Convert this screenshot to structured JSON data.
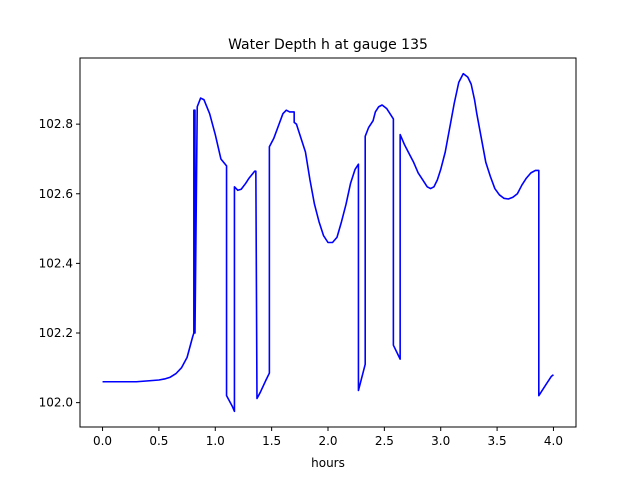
{
  "chart_data": {
    "type": "line",
    "title": "Water Depth h at gauge 135",
    "xlabel": "hours",
    "ylabel": "",
    "xlim": [
      -0.2,
      4.2
    ],
    "ylim": [
      101.93,
      102.99
    ],
    "xticks": [
      0.0,
      0.5,
      1.0,
      1.5,
      2.0,
      2.5,
      3.0,
      3.5,
      4.0
    ],
    "xtick_labels": [
      "0.0",
      "0.5",
      "1.0",
      "1.5",
      "2.0",
      "2.5",
      "3.0",
      "3.5",
      "4.0"
    ],
    "yticks": [
      102.0,
      102.2,
      102.4,
      102.6,
      102.8
    ],
    "ytick_labels": [
      "102.0",
      "102.2",
      "102.4",
      "102.6",
      "102.8"
    ],
    "grid": false,
    "legend": "none",
    "series": [
      {
        "color": "#0000ff",
        "x": [
          0.0,
          0.3,
          0.5,
          0.55,
          0.6,
          0.65,
          0.7,
          0.75,
          0.8,
          0.81,
          0.81,
          0.82,
          0.82,
          0.84,
          0.87,
          0.9,
          0.95,
          1.0,
          1.05,
          1.1,
          1.1,
          1.15,
          1.17,
          1.17,
          1.2,
          1.23,
          1.27,
          1.3,
          1.35,
          1.36,
          1.37,
          1.4,
          1.45,
          1.48,
          1.48,
          1.52,
          1.56,
          1.6,
          1.63,
          1.66,
          1.7,
          1.7,
          1.72,
          1.75,
          1.8,
          1.84,
          1.88,
          1.92,
          1.96,
          2.0,
          2.04,
          2.08,
          2.12,
          2.16,
          2.2,
          2.24,
          2.27,
          2.27,
          2.33,
          2.33,
          2.36,
          2.4,
          2.42,
          2.45,
          2.48,
          2.52,
          2.56,
          2.58,
          2.58,
          2.64,
          2.64,
          2.68,
          2.72,
          2.76,
          2.8,
          2.84,
          2.88,
          2.91,
          2.94,
          2.97,
          3.0,
          3.04,
          3.08,
          3.12,
          3.16,
          3.2,
          3.24,
          3.27,
          3.3,
          3.32,
          3.36,
          3.4,
          3.44,
          3.48,
          3.52,
          3.56,
          3.6,
          3.64,
          3.68,
          3.72,
          3.76,
          3.8,
          3.84,
          3.87,
          3.87,
          3.9,
          3.94,
          3.98,
          4.0
        ],
        "y": [
          102.06,
          102.06,
          102.065,
          102.068,
          102.073,
          102.083,
          102.1,
          102.13,
          102.19,
          102.2,
          102.84,
          102.84,
          102.2,
          102.85,
          102.875,
          102.87,
          102.83,
          102.77,
          102.7,
          102.68,
          102.02,
          101.99,
          101.975,
          102.62,
          102.61,
          102.613,
          102.63,
          102.645,
          102.665,
          102.665,
          102.012,
          102.03,
          102.065,
          102.085,
          102.735,
          102.76,
          102.795,
          102.83,
          102.84,
          102.835,
          102.835,
          102.805,
          102.8,
          102.77,
          102.72,
          102.64,
          102.57,
          102.52,
          102.48,
          102.46,
          102.46,
          102.475,
          102.52,
          102.57,
          102.63,
          102.67,
          102.685,
          102.035,
          102.11,
          102.765,
          102.79,
          102.81,
          102.835,
          102.85,
          102.855,
          102.845,
          102.825,
          102.815,
          102.165,
          102.125,
          102.77,
          102.74,
          102.715,
          102.69,
          102.66,
          102.64,
          102.62,
          102.615,
          102.62,
          102.64,
          102.67,
          102.72,
          102.79,
          102.86,
          102.92,
          102.945,
          102.935,
          102.915,
          102.87,
          102.83,
          102.76,
          102.69,
          102.65,
          102.615,
          102.597,
          102.587,
          102.585,
          102.59,
          102.6,
          102.625,
          102.645,
          102.66,
          102.667,
          102.667,
          102.02,
          102.035,
          102.055,
          102.075,
          102.08
        ]
      }
    ]
  }
}
